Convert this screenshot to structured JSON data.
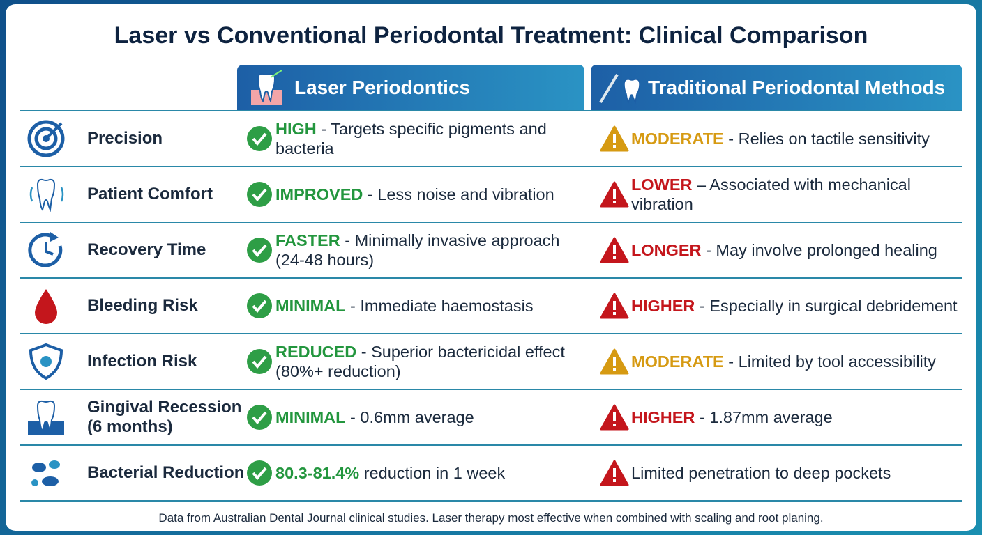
{
  "header": {
    "title": "Laser vs Conventional Periodontal Treatment: Clinical Comparison"
  },
  "columns": {
    "laser": "Laser Periodontics",
    "traditional": "Traditional Periodontal Methods"
  },
  "rows": [
    {
      "label": "Precision",
      "laser": {
        "level": "HIGH",
        "text": "- Targets specific pigments and bacteria"
      },
      "traditional": {
        "level": "MODERATE",
        "text": "- Relies on tactile sensitivity",
        "color": "#d69a12"
      }
    },
    {
      "label": "Patient Comfort",
      "laser": {
        "level": "IMPROVED",
        "text": "- Less noise and vibration"
      },
      "traditional": {
        "level": "LOWER",
        "text": "– Associated with mechanical vibration",
        "color": "#c4161c"
      }
    },
    {
      "label": "Recovery Time",
      "laser": {
        "level": "FASTER",
        "text": "- Minimally invasive approach (24-48 hours)"
      },
      "traditional": {
        "level": "LONGER",
        "text": "- May involve prolonged healing",
        "color": "#c4161c"
      }
    },
    {
      "label": "Bleeding Risk",
      "laser": {
        "level": "MINIMAL",
        "text": "- Immediate haemostasis"
      },
      "traditional": {
        "level": "HIGHER",
        "text": "- Especially in surgical debridement",
        "color": "#c4161c"
      }
    },
    {
      "label": "Infection Risk",
      "laser": {
        "level": "REDUCED",
        "text": "- Superior bactericidal effect (80%+ reduction)"
      },
      "traditional": {
        "level": "MODERATE",
        "text": "- Limited by tool accessibility",
        "color": "#d69a12"
      }
    },
    {
      "label": "Gingival Recession (6 months)",
      "laser": {
        "level": "MINIMAL",
        "text": "- 0.6mm average"
      },
      "traditional": {
        "level": "HIGHER",
        "text": "- 1.87mm average",
        "color": "#c4161c"
      }
    },
    {
      "label": "Bacterial Reduction",
      "laser": {
        "level": "80.3-81.4%",
        "text": "reduction in 1 week"
      },
      "traditional": {
        "text": "Limited penetration to deep pockets",
        "color": "#c4161c"
      }
    }
  ],
  "footer": "Data from Australian Dental Journal clinical studies. Laser therapy most effective when combined with scaling and root planing."
}
